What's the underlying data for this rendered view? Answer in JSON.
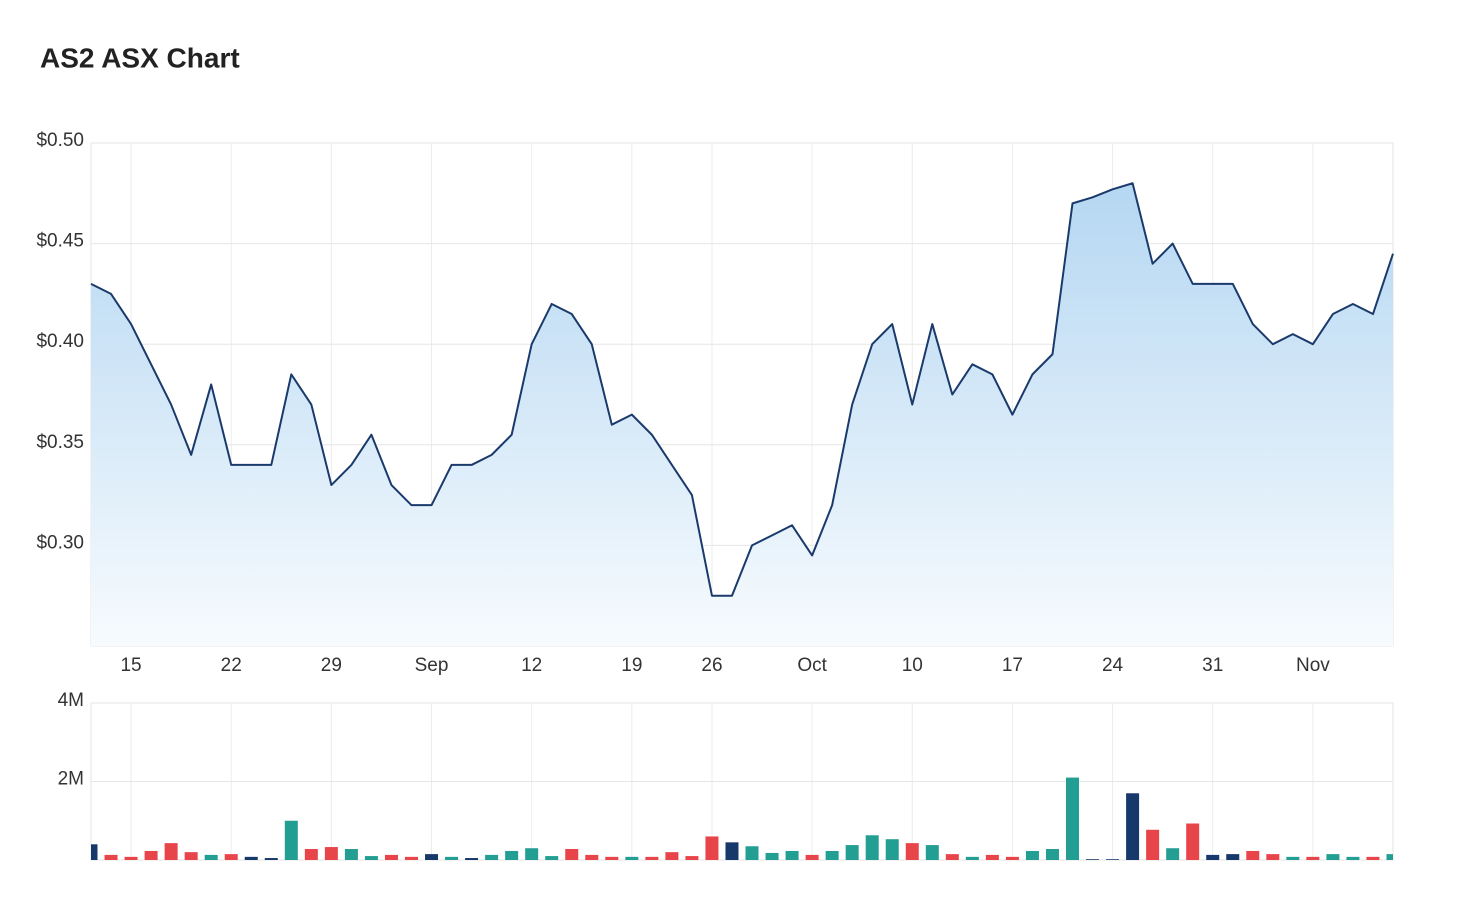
{
  "title": "AS2 ASX Chart",
  "chart_data": [
    {
      "type": "area",
      "categories": [
        null,
        null,
        "15",
        null,
        null,
        null,
        null,
        "22",
        null,
        null,
        null,
        null,
        "29",
        null,
        null,
        null,
        null,
        "Sep",
        null,
        null,
        null,
        null,
        "12",
        null,
        null,
        null,
        null,
        "19",
        null,
        null,
        null,
        "26",
        null,
        null,
        null,
        null,
        "Oct",
        null,
        null,
        null,
        null,
        "10",
        null,
        null,
        null,
        null,
        "17",
        null,
        null,
        null,
        null,
        "24",
        null,
        null,
        null,
        null,
        "31",
        null,
        null,
        null,
        null,
        "Nov",
        null,
        null,
        null,
        null
      ],
      "values": [
        0.43,
        0.425,
        0.41,
        0.39,
        0.37,
        0.345,
        0.38,
        0.34,
        0.34,
        0.34,
        0.385,
        0.37,
        0.33,
        0.34,
        0.355,
        0.33,
        0.32,
        0.32,
        0.34,
        0.34,
        0.345,
        0.355,
        0.4,
        0.42,
        0.415,
        0.4,
        0.36,
        0.365,
        0.355,
        0.34,
        0.325,
        0.275,
        0.275,
        0.3,
        0.305,
        0.31,
        0.295,
        0.32,
        0.37,
        0.4,
        0.41,
        0.37,
        0.41,
        0.375,
        0.39,
        0.385,
        0.365,
        0.385,
        0.395,
        0.47,
        0.473,
        0.477,
        0.48,
        0.44,
        0.45,
        0.43,
        0.43,
        0.43,
        0.41,
        0.4,
        0.405,
        0.4,
        0.415,
        0.42,
        0.415,
        0.445
      ],
      "color": "#1a3a6b",
      "ylim": [
        0.25,
        0.5
      ],
      "yticks": [
        {
          "value": 0.3,
          "label": "$0.30"
        },
        {
          "value": 0.35,
          "label": "$0.35"
        },
        {
          "value": 0.4,
          "label": "$0.40"
        },
        {
          "value": 0.45,
          "label": "$0.45"
        },
        {
          "value": 0.5,
          "label": "$0.50"
        }
      ],
      "grid": true
    },
    {
      "type": "bar",
      "values": [
        400000,
        130000,
        80000,
        230000,
        430000,
        200000,
        130000,
        150000,
        80000,
        50000,
        1000000,
        280000,
        330000,
        280000,
        100000,
        130000,
        80000,
        150000,
        80000,
        50000,
        130000,
        230000,
        300000,
        100000,
        280000,
        130000,
        80000,
        80000,
        80000,
        200000,
        100000,
        600000,
        450000,
        350000,
        180000,
        230000,
        130000,
        230000,
        380000,
        630000,
        530000,
        430000,
        380000,
        150000,
        80000,
        130000,
        80000,
        230000,
        280000,
        2100000,
        20000,
        20000,
        1700000,
        770000,
        300000,
        930000,
        130000,
        150000,
        230000,
        150000,
        80000,
        80000,
        150000,
        80000,
        80000,
        150000
      ],
      "colors": [
        "#17386b",
        "#e8454a",
        "#e8454a",
        "#e8454a",
        "#e8454a",
        "#e8454a",
        "#239e93",
        "#e8454a",
        "#17386b",
        "#17386b",
        "#239e93",
        "#e8454a",
        "#e8454a",
        "#239e93",
        "#239e93",
        "#e8454a",
        "#e8454a",
        "#17386b",
        "#239e93",
        "#17386b",
        "#239e93",
        "#239e93",
        "#239e93",
        "#239e93",
        "#e8454a",
        "#e8454a",
        "#e8454a",
        "#239e93",
        "#e8454a",
        "#e8454a",
        "#e8454a",
        "#e8454a",
        "#17386b",
        "#239e93",
        "#239e93",
        "#239e93",
        "#e8454a",
        "#239e93",
        "#239e93",
        "#239e93",
        "#239e93",
        "#e8454a",
        "#239e93",
        "#e8454a",
        "#239e93",
        "#e8454a",
        "#e8454a",
        "#239e93",
        "#239e93",
        "#239e93",
        "#17386b",
        "#17386b",
        "#17386b",
        "#e8454a",
        "#239e93",
        "#e8454a",
        "#17386b",
        "#17386b",
        "#e8454a",
        "#e8454a",
        "#239e93",
        "#e8454a",
        "#239e93",
        "#239e93",
        "#e8454a",
        "#239e93"
      ],
      "ylim": [
        0,
        4000000
      ],
      "yticks": [
        {
          "value": 2000000,
          "label": "2M"
        },
        {
          "value": 4000000,
          "label": "4M"
        }
      ],
      "grid": true
    }
  ]
}
